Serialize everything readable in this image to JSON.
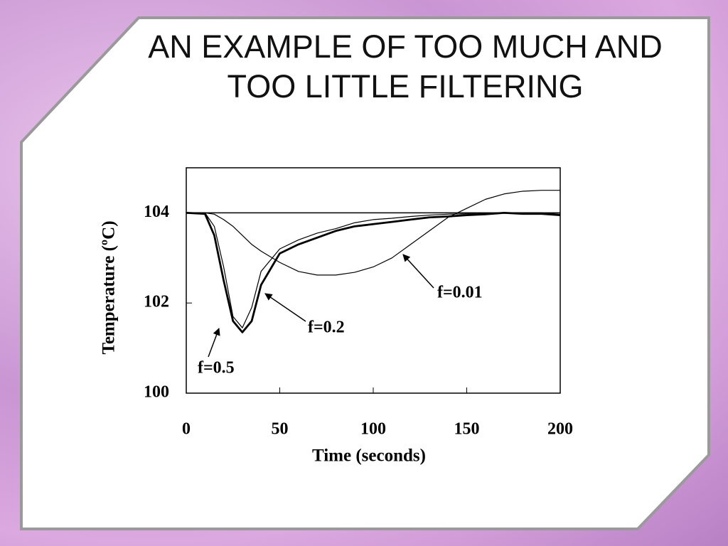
{
  "slide": {
    "title": "AN EXAMPLE OF TOO MUCH AND TOO LITTLE FILTERING"
  },
  "chart_data": {
    "type": "line",
    "x_label": "Time (seconds)",
    "y_label": "Temperature (ºC)",
    "x": [
      0,
      10,
      15,
      20,
      25,
      30,
      35,
      40,
      50,
      60,
      70,
      80,
      90,
      100,
      110,
      120,
      130,
      140,
      150,
      160,
      170,
      180,
      190,
      200
    ],
    "series": [
      {
        "color": "#000000",
        "values": [
          104,
          104,
          104,
          104,
          104,
          104,
          104,
          104,
          104,
          104,
          104,
          104,
          104,
          104,
          104,
          104,
          104,
          104,
          104,
          104,
          104,
          104,
          104,
          104
        ]
      },
      {
        "name": "f=0.01",
        "color": "#000000",
        "values": [
          104,
          104,
          103.97,
          103.85,
          103.7,
          103.5,
          103.3,
          103.15,
          102.9,
          102.7,
          102.62,
          102.62,
          102.68,
          102.8,
          103.0,
          103.3,
          103.6,
          103.9,
          104.1,
          104.3,
          104.42,
          104.48,
          104.5,
          104.5
        ]
      },
      {
        "name": "f=0.2",
        "color": "#000000",
        "values": [
          104,
          104,
          103.7,
          102.8,
          101.7,
          101.45,
          101.9,
          102.7,
          103.2,
          103.4,
          103.55,
          103.65,
          103.78,
          103.85,
          103.88,
          103.92,
          103.95,
          103.97,
          103.98,
          103.98,
          104,
          104,
          104,
          103.97
        ]
      },
      {
        "name": "f=0.5",
        "color": "#000000",
        "values": [
          104,
          103.98,
          103.5,
          102.5,
          101.6,
          101.35,
          101.6,
          102.4,
          103.1,
          103.3,
          103.45,
          103.6,
          103.7,
          103.75,
          103.8,
          103.85,
          103.9,
          103.92,
          103.95,
          103.97,
          104,
          103.98,
          103.98,
          103.95
        ]
      }
    ],
    "xlim": [
      0,
      200
    ],
    "ylim": [
      100,
      105
    ],
    "xticks": [
      0,
      50,
      100,
      150,
      200
    ],
    "yticks": [
      100,
      102,
      104
    ]
  }
}
